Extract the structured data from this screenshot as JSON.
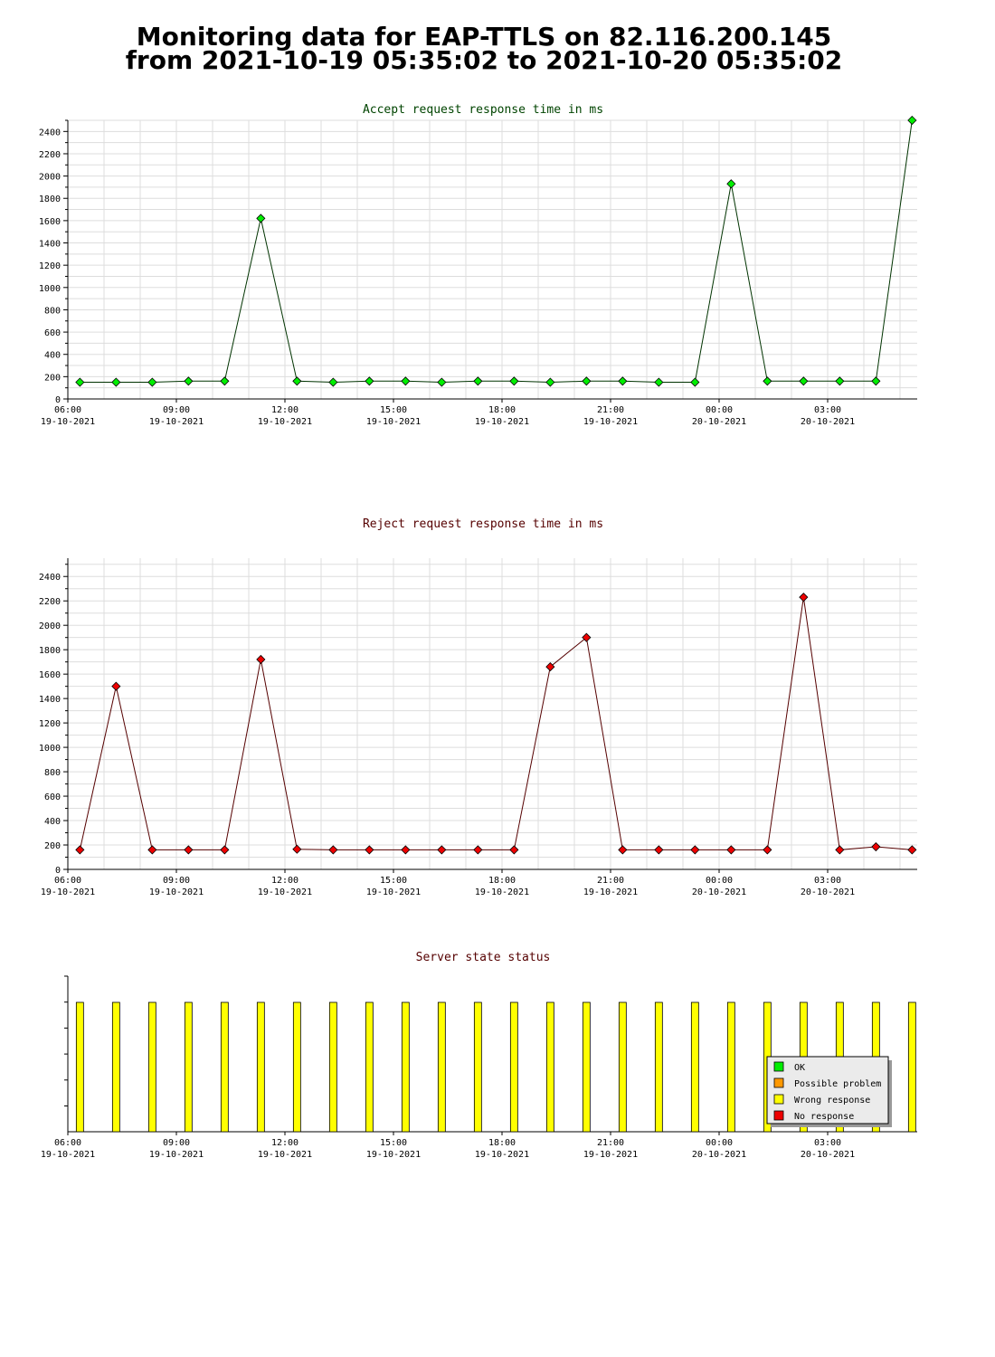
{
  "header": {
    "line1": "Monitoring data for EAP-TTLS on 82.116.200.145",
    "line2": "from 2021-10-19 05:35:02 to 2021-10-20 05:35:02"
  },
  "colors": {
    "accept_line": "#003300",
    "accept_marker": "#00ee00",
    "reject_line": "#550000",
    "reject_marker": "#ee0000",
    "accept_title": "#004400",
    "reject_title": "#550000",
    "status_title": "#550000",
    "grid": "#dddddd",
    "status_bar": "#ffff00"
  },
  "chart_data": [
    {
      "type": "line",
      "title": "Accept request response time in ms",
      "ylim": [
        0,
        2500
      ],
      "y_ticks": [
        0,
        200,
        400,
        600,
        800,
        1000,
        1200,
        1400,
        1600,
        1800,
        2000,
        2200,
        2400
      ],
      "x_ticks": [
        {
          "time": "06:00",
          "date": "19-10-2021"
        },
        {
          "time": "09:00",
          "date": "19-10-2021"
        },
        {
          "time": "12:00",
          "date": "19-10-2021"
        },
        {
          "time": "15:00",
          "date": "19-10-2021"
        },
        {
          "time": "18:00",
          "date": "19-10-2021"
        },
        {
          "time": "21:00",
          "date": "19-10-2021"
        },
        {
          "time": "00:00",
          "date": "20-10-2021"
        },
        {
          "time": "03:00",
          "date": "20-10-2021"
        }
      ],
      "grid": true,
      "series": [
        {
          "x": [
            "2021-10-19 06:20",
            "2021-10-19 07:20",
            "2021-10-19 08:20",
            "2021-10-19 09:20",
            "2021-10-19 10:20",
            "2021-10-19 11:20",
            "2021-10-19 12:20",
            "2021-10-19 13:20",
            "2021-10-19 14:20",
            "2021-10-19 15:20",
            "2021-10-19 16:20",
            "2021-10-19 17:20",
            "2021-10-19 18:20",
            "2021-10-19 19:20",
            "2021-10-19 20:20",
            "2021-10-19 21:20",
            "2021-10-19 22:20",
            "2021-10-19 23:20",
            "2021-10-20 00:20",
            "2021-10-20 01:20",
            "2021-10-20 02:20",
            "2021-10-20 03:20",
            "2021-10-20 04:20",
            "2021-10-20 05:20"
          ],
          "values": [
            150,
            150,
            150,
            160,
            160,
            1620,
            160,
            150,
            160,
            160,
            150,
            160,
            160,
            150,
            160,
            160,
            150,
            150,
            1930,
            160,
            160,
            160,
            160,
            2500
          ]
        }
      ]
    },
    {
      "type": "line",
      "title": "Reject request response time in ms",
      "ylim": [
        0,
        2550
      ],
      "y_ticks": [
        0,
        200,
        400,
        600,
        800,
        1000,
        1200,
        1400,
        1600,
        1800,
        2000,
        2200,
        2400
      ],
      "x_ticks": [
        {
          "time": "06:00",
          "date": "19-10-2021"
        },
        {
          "time": "09:00",
          "date": "19-10-2021"
        },
        {
          "time": "12:00",
          "date": "19-10-2021"
        },
        {
          "time": "15:00",
          "date": "19-10-2021"
        },
        {
          "time": "18:00",
          "date": "19-10-2021"
        },
        {
          "time": "21:00",
          "date": "19-10-2021"
        },
        {
          "time": "00:00",
          "date": "20-10-2021"
        },
        {
          "time": "03:00",
          "date": "20-10-2021"
        }
      ],
      "grid": true,
      "series": [
        {
          "x": [
            "2021-10-19 06:20",
            "2021-10-19 07:20",
            "2021-10-19 08:20",
            "2021-10-19 09:20",
            "2021-10-19 10:20",
            "2021-10-19 11:20",
            "2021-10-19 12:20",
            "2021-10-19 13:20",
            "2021-10-19 14:20",
            "2021-10-19 15:20",
            "2021-10-19 16:20",
            "2021-10-19 17:20",
            "2021-10-19 18:20",
            "2021-10-19 19:20",
            "2021-10-19 20:20",
            "2021-10-19 21:20",
            "2021-10-19 22:20",
            "2021-10-19 23:20",
            "2021-10-20 00:20",
            "2021-10-20 01:20",
            "2021-10-20 02:20",
            "2021-10-20 03:20",
            "2021-10-20 04:20",
            "2021-10-20 05:20"
          ],
          "values": [
            160,
            1500,
            160,
            160,
            160,
            1720,
            165,
            160,
            160,
            160,
            160,
            160,
            160,
            1660,
            1900,
            160,
            160,
            160,
            160,
            160,
            2230,
            160,
            185,
            160
          ]
        }
      ]
    },
    {
      "type": "bar",
      "title": "Server state status",
      "x_ticks": [
        {
          "time": "06:00",
          "date": "19-10-2021"
        },
        {
          "time": "09:00",
          "date": "19-10-2021"
        },
        {
          "time": "12:00",
          "date": "19-10-2021"
        },
        {
          "time": "15:00",
          "date": "19-10-2021"
        },
        {
          "time": "18:00",
          "date": "19-10-2021"
        },
        {
          "time": "21:00",
          "date": "19-10-2021"
        },
        {
          "time": "00:00",
          "date": "20-10-2021"
        },
        {
          "time": "03:00",
          "date": "20-10-2021"
        }
      ],
      "legend_position": "bottom-right",
      "legend": [
        {
          "label": "OK",
          "color": "#00ee00"
        },
        {
          "label": "Possible problem",
          "color": "#ff9900"
        },
        {
          "label": "Wrong response",
          "color": "#ffff00"
        },
        {
          "label": "No response",
          "color": "#ee0000"
        }
      ],
      "series": [
        {
          "x": [
            "2021-10-19 06:20",
            "2021-10-19 07:20",
            "2021-10-19 08:20",
            "2021-10-19 09:20",
            "2021-10-19 10:20",
            "2021-10-19 11:20",
            "2021-10-19 12:20",
            "2021-10-19 13:20",
            "2021-10-19 14:20",
            "2021-10-19 15:20",
            "2021-10-19 16:20",
            "2021-10-19 17:20",
            "2021-10-19 18:20",
            "2021-10-19 19:20",
            "2021-10-19 20:20",
            "2021-10-19 21:20",
            "2021-10-19 22:20",
            "2021-10-19 23:20",
            "2021-10-20 00:20",
            "2021-10-20 01:20",
            "2021-10-20 02:20",
            "2021-10-20 03:20",
            "2021-10-20 04:20",
            "2021-10-20 05:20"
          ],
          "states": [
            "Wrong response",
            "Wrong response",
            "Wrong response",
            "Wrong response",
            "Wrong response",
            "Wrong response",
            "Wrong response",
            "Wrong response",
            "Wrong response",
            "Wrong response",
            "Wrong response",
            "Wrong response",
            "Wrong response",
            "Wrong response",
            "Wrong response",
            "Wrong response",
            "Wrong response",
            "Wrong response",
            "Wrong response",
            "Wrong response",
            "Wrong response",
            "Wrong response",
            "Wrong response",
            "Wrong response"
          ]
        }
      ]
    }
  ]
}
